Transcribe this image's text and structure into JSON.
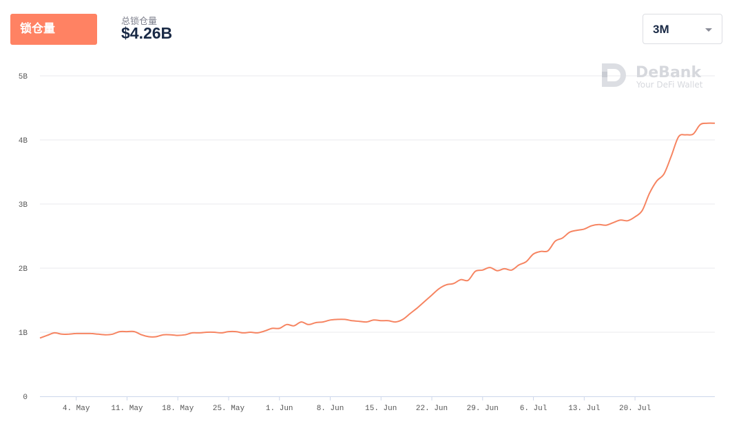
{
  "header": {
    "tab_label": "锁仓量",
    "summary_label": "总锁仓量",
    "summary_value": "$4.26B",
    "range_selected": "3M"
  },
  "watermark": {
    "title": "DeBank",
    "subtitle": "Your DeFi Wallet"
  },
  "colors": {
    "accent": "#ff8263",
    "line": "#f68461",
    "grid": "#e8e9ec",
    "axis": "#ccd6eb",
    "text_dark": "#192945"
  },
  "chart_data": {
    "type": "line",
    "title": "",
    "xlabel": "",
    "ylabel": "",
    "ylim": [
      0,
      5
    ],
    "y_unit": "B",
    "xlim": [
      "2021-04-29",
      "2021-07-31"
    ],
    "y_ticks": [
      {
        "value": 0,
        "label": "0"
      },
      {
        "value": 1,
        "label": "1B"
      },
      {
        "value": 2,
        "label": "2B"
      },
      {
        "value": 3,
        "label": "3B"
      },
      {
        "value": 4,
        "label": "4B"
      },
      {
        "value": 5,
        "label": "5B"
      }
    ],
    "x_ticks": [
      {
        "date": "2021-05-04",
        "label": "4. May"
      },
      {
        "date": "2021-05-11",
        "label": "11. May"
      },
      {
        "date": "2021-05-18",
        "label": "18. May"
      },
      {
        "date": "2021-05-25",
        "label": "25. May"
      },
      {
        "date": "2021-06-01",
        "label": "1. Jun"
      },
      {
        "date": "2021-06-08",
        "label": "8. Jun"
      },
      {
        "date": "2021-06-15",
        "label": "15. Jun"
      },
      {
        "date": "2021-06-22",
        "label": "22. Jun"
      },
      {
        "date": "2021-06-29",
        "label": "29. Jun"
      },
      {
        "date": "2021-07-06",
        "label": "6. Jul"
      },
      {
        "date": "2021-07-13",
        "label": "13. Jul"
      },
      {
        "date": "2021-07-20",
        "label": "20. Jul"
      }
    ],
    "grid": true,
    "legend": "none",
    "series": [
      {
        "points": [
          [
            "2021-04-29",
            0.91
          ],
          [
            "2021-04-30",
            0.95
          ],
          [
            "2021-05-01",
            0.99
          ],
          [
            "2021-05-02",
            0.97
          ],
          [
            "2021-05-03",
            0.97
          ],
          [
            "2021-05-04",
            0.98
          ],
          [
            "2021-05-05",
            0.98
          ],
          [
            "2021-05-06",
            0.98
          ],
          [
            "2021-05-07",
            0.97
          ],
          [
            "2021-05-08",
            0.96
          ],
          [
            "2021-05-09",
            0.97
          ],
          [
            "2021-05-10",
            1.01
          ],
          [
            "2021-05-11",
            1.01
          ],
          [
            "2021-05-12",
            1.01
          ],
          [
            "2021-05-13",
            0.96
          ],
          [
            "2021-05-14",
            0.93
          ],
          [
            "2021-05-15",
            0.93
          ],
          [
            "2021-05-16",
            0.96
          ],
          [
            "2021-05-17",
            0.96
          ],
          [
            "2021-05-18",
            0.95
          ],
          [
            "2021-05-19",
            0.96
          ],
          [
            "2021-05-20",
            0.99
          ],
          [
            "2021-05-21",
            0.99
          ],
          [
            "2021-05-22",
            1.0
          ],
          [
            "2021-05-23",
            1.0
          ],
          [
            "2021-05-24",
            0.99
          ],
          [
            "2021-05-25",
            1.01
          ],
          [
            "2021-05-26",
            1.01
          ],
          [
            "2021-05-27",
            0.99
          ],
          [
            "2021-05-28",
            1.0
          ],
          [
            "2021-05-29",
            0.99
          ],
          [
            "2021-05-30",
            1.02
          ],
          [
            "2021-05-31",
            1.06
          ],
          [
            "2021-06-01",
            1.06
          ],
          [
            "2021-06-02",
            1.12
          ],
          [
            "2021-06-03",
            1.1
          ],
          [
            "2021-06-04",
            1.16
          ],
          [
            "2021-06-05",
            1.12
          ],
          [
            "2021-06-06",
            1.15
          ],
          [
            "2021-06-07",
            1.16
          ],
          [
            "2021-06-08",
            1.19
          ],
          [
            "2021-06-09",
            1.2
          ],
          [
            "2021-06-10",
            1.2
          ],
          [
            "2021-06-11",
            1.18
          ],
          [
            "2021-06-12",
            1.17
          ],
          [
            "2021-06-13",
            1.16
          ],
          [
            "2021-06-14",
            1.19
          ],
          [
            "2021-06-15",
            1.18
          ],
          [
            "2021-06-16",
            1.18
          ],
          [
            "2021-06-17",
            1.16
          ],
          [
            "2021-06-18",
            1.2
          ],
          [
            "2021-06-19",
            1.29
          ],
          [
            "2021-06-20",
            1.38
          ],
          [
            "2021-06-21",
            1.48
          ],
          [
            "2021-06-22",
            1.58
          ],
          [
            "2021-06-23",
            1.68
          ],
          [
            "2021-06-24",
            1.74
          ],
          [
            "2021-06-25",
            1.76
          ],
          [
            "2021-06-26",
            1.82
          ],
          [
            "2021-06-27",
            1.81
          ],
          [
            "2021-06-28",
            1.95
          ],
          [
            "2021-06-29",
            1.97
          ],
          [
            "2021-06-30",
            2.01
          ],
          [
            "2021-07-01",
            1.96
          ],
          [
            "2021-07-02",
            1.99
          ],
          [
            "2021-07-03",
            1.97
          ],
          [
            "2021-07-04",
            2.05
          ],
          [
            "2021-07-05",
            2.1
          ],
          [
            "2021-07-06",
            2.22
          ],
          [
            "2021-07-07",
            2.26
          ],
          [
            "2021-07-08",
            2.27
          ],
          [
            "2021-07-09",
            2.42
          ],
          [
            "2021-07-10",
            2.47
          ],
          [
            "2021-07-11",
            2.56
          ],
          [
            "2021-07-12",
            2.59
          ],
          [
            "2021-07-13",
            2.61
          ],
          [
            "2021-07-14",
            2.66
          ],
          [
            "2021-07-15",
            2.68
          ],
          [
            "2021-07-16",
            2.67
          ],
          [
            "2021-07-17",
            2.71
          ],
          [
            "2021-07-18",
            2.75
          ],
          [
            "2021-07-19",
            2.74
          ],
          [
            "2021-07-20",
            2.8
          ],
          [
            "2021-07-21",
            2.9
          ],
          [
            "2021-07-22",
            3.17
          ],
          [
            "2021-07-23",
            3.36
          ],
          [
            "2021-07-24",
            3.47
          ],
          [
            "2021-07-25",
            3.75
          ],
          [
            "2021-07-26",
            4.05
          ],
          [
            "2021-07-27",
            4.08
          ],
          [
            "2021-07-28",
            4.09
          ],
          [
            "2021-07-29",
            4.24
          ],
          [
            "2021-07-30",
            4.26
          ],
          [
            "2021-07-31",
            4.26
          ]
        ]
      }
    ]
  }
}
